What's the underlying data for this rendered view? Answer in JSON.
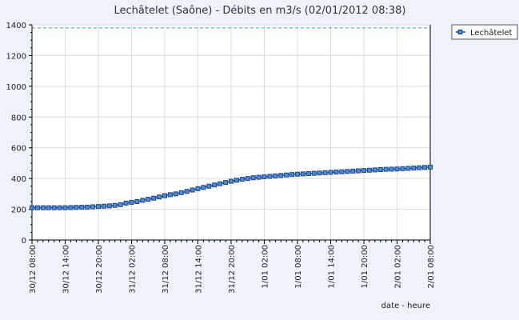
{
  "chart_data": {
    "type": "line",
    "title": "Lechâtelet (Saône) - Débits en m3/s (02/01/2012 08:38)",
    "xlabel": "date - heure",
    "ylabel": "",
    "ylim": [
      0,
      1400
    ],
    "yticks": [
      0,
      200,
      400,
      600,
      800,
      1000,
      1200,
      1400
    ],
    "x_tick_labels": [
      "30/12 08:00",
      "30/12 14:00",
      "30/12 20:00",
      "31/12 02:00",
      "31/12 08:00",
      "31/12 14:00",
      "31/12 20:00",
      "1/01 02:00",
      "1/01 08:00",
      "1/01 14:00",
      "1/01 20:00",
      "2/01 02:00",
      "2/01 08:00"
    ],
    "threshold": 1380,
    "grid": true,
    "legend_position": "top-right",
    "series": [
      {
        "name": "Lechâtelet",
        "color": "#1f3f8f",
        "marker_fill": "#4a90c8",
        "values": [
          210,
          210,
          210,
          210,
          210,
          210,
          210,
          211,
          212,
          213,
          214,
          216,
          218,
          220,
          222,
          225,
          230,
          240,
          245,
          250,
          258,
          265,
          272,
          280,
          288,
          295,
          300,
          308,
          316,
          325,
          334,
          342,
          350,
          358,
          366,
          374,
          382,
          389,
          395,
          400,
          405,
          408,
          411,
          414,
          417,
          420,
          423,
          426,
          428,
          430,
          432,
          434,
          436,
          438,
          440,
          442,
          444,
          446,
          448,
          450,
          452,
          454,
          456,
          458,
          460,
          461,
          462,
          464,
          466,
          468,
          470,
          472,
          474
        ]
      }
    ]
  }
}
